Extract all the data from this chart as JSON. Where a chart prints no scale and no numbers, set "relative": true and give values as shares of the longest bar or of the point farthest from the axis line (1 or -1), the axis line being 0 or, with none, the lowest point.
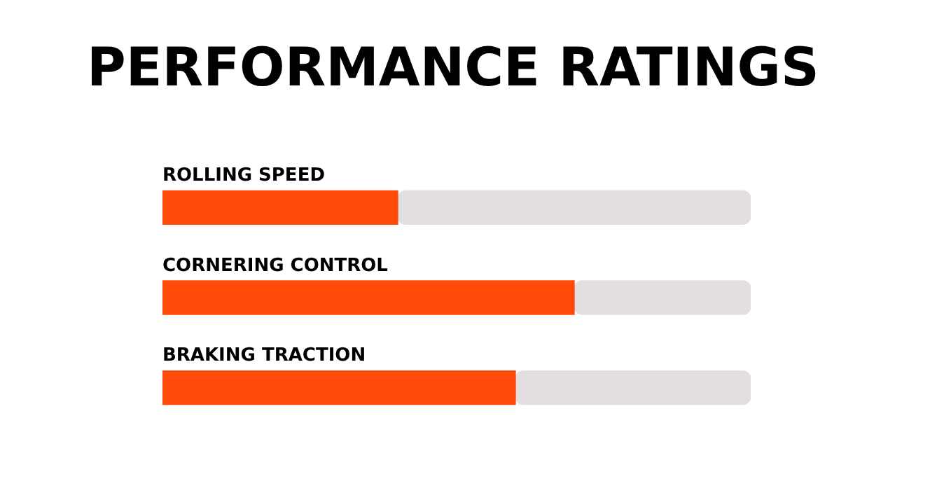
{
  "chart_data": {
    "type": "bar",
    "title": "PERFORMANCE RATINGS",
    "orientation": "horizontal",
    "stacked": true,
    "relative": true,
    "categories": [
      "ROLLING SPEED",
      "CORNERING CONTROL",
      "BRAKING TRACTION"
    ],
    "series": [
      {
        "color": "#ff4a0a",
        "values": [
          0.4,
          0.7,
          0.6
        ]
      },
      {
        "color": "#e3dfe0",
        "values": [
          0.6,
          0.3,
          0.4
        ]
      }
    ],
    "legend": false
  }
}
